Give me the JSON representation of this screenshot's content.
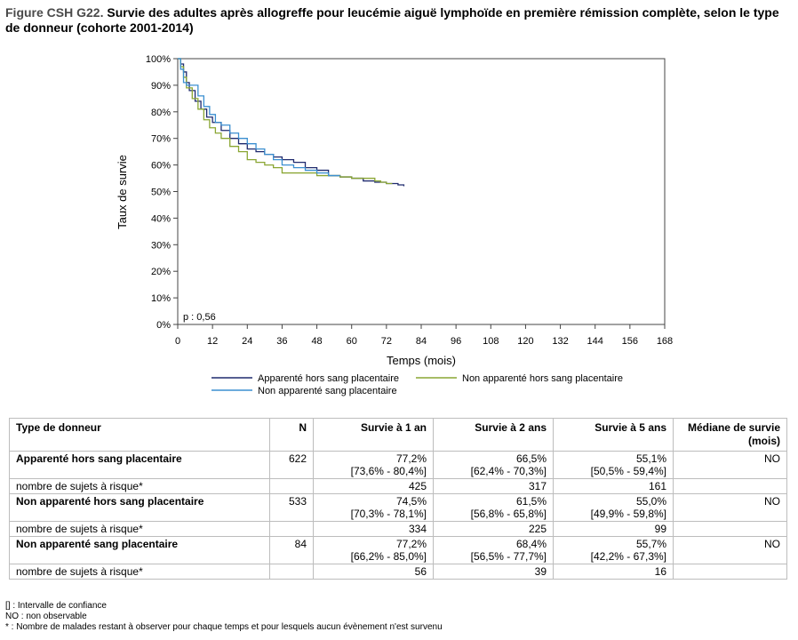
{
  "figure": {
    "number": "Figure CSH G22.",
    "title": "Survie des adultes après allogreffe pour leucémie aiguë lymphoïde en première rémission complète, selon le type de donneur  (cohorte 2001-2014)"
  },
  "colors": {
    "apparente": "#1f2a6e",
    "non_apparente_hsp": "#8aa633",
    "non_apparente_sp": "#3b8fd0"
  },
  "chart_data": {
    "type": "line",
    "title": "",
    "xlabel": "Temps (mois)",
    "ylabel": "Taux de survie",
    "xlim": [
      0,
      168
    ],
    "ylim": [
      0,
      100
    ],
    "x_ticks": [
      0,
      12,
      24,
      36,
      48,
      60,
      72,
      84,
      96,
      108,
      120,
      132,
      144,
      156,
      168
    ],
    "y_ticks": [
      0,
      10,
      20,
      30,
      40,
      50,
      60,
      70,
      80,
      90,
      100
    ],
    "y_tick_labels": [
      "0%",
      "10%",
      "20%",
      "30%",
      "40%",
      "50%",
      "60%",
      "70%",
      "80%",
      "90%",
      "100%"
    ],
    "grid": false,
    "annotation": "p : 0,56",
    "legend_position": "bottom",
    "series": [
      {
        "name": "Apparenté hors sang placentaire",
        "color": "#1f2a6e",
        "x": [
          0,
          1,
          2,
          3,
          4,
          6,
          8,
          10,
          12,
          15,
          18,
          21,
          24,
          27,
          30,
          33,
          36,
          40,
          44,
          48,
          52,
          56,
          60,
          64,
          68,
          72,
          76,
          78
        ],
        "y": [
          100,
          98,
          95,
          91,
          88,
          84,
          81,
          78,
          76,
          73,
          70,
          68,
          66,
          65,
          64,
          63,
          62,
          61,
          59,
          58,
          56,
          55.5,
          55,
          54,
          53.5,
          53,
          52.5,
          52
        ]
      },
      {
        "name": "Non apparenté hors sang placentaire",
        "color": "#8aa633",
        "x": [
          0,
          1,
          2,
          3,
          5,
          7,
          9,
          11,
          13,
          15,
          18,
          21,
          24,
          27,
          30,
          33,
          36,
          40,
          44,
          48,
          52,
          56,
          60,
          64,
          68,
          70,
          72,
          74
        ],
        "y": [
          100,
          97,
          93,
          89,
          85,
          81,
          77,
          74,
          72,
          70,
          67,
          65,
          62,
          61,
          60,
          59,
          57,
          57,
          57,
          56,
          56,
          55.5,
          55,
          55,
          54,
          53.5,
          53,
          53
        ]
      },
      {
        "name": "Non apparenté sang placentaire",
        "color": "#3b8fd0",
        "x": [
          0,
          1,
          2,
          3,
          5,
          7,
          9,
          11,
          13,
          15,
          18,
          21,
          24,
          27,
          30,
          33,
          36,
          40,
          44,
          48,
          52,
          56
        ],
        "y": [
          100,
          96,
          91,
          90,
          90,
          86,
          82,
          79,
          76,
          75,
          72,
          70,
          68,
          66,
          64,
          62,
          60,
          59,
          58,
          57,
          56,
          56
        ]
      }
    ]
  },
  "table": {
    "headers": [
      "Type de donneur",
      "N",
      "Survie à 1 an",
      "Survie à 2 ans",
      "Survie à 5 ans",
      "Médiane de survie (mois)"
    ],
    "groups": [
      {
        "name": "Apparenté hors sang placentaire",
        "n": "622",
        "s1": "77,2%",
        "s1_ci": "[73,6% - 80,4%]",
        "s2": "66,5%",
        "s2_ci": "[62,4% - 70,3%]",
        "s5": "55,1%",
        "s5_ci": "[50,5% - 59,4%]",
        "median": "NO",
        "risk_label": "nombre de sujets à risque*",
        "r1": "425",
        "r2": "317",
        "r5": "161"
      },
      {
        "name": "Non apparenté hors sang placentaire",
        "n": "533",
        "s1": "74,5%",
        "s1_ci": "[70,3% - 78,1%]",
        "s2": "61,5%",
        "s2_ci": "[56,8% - 65,8%]",
        "s5": "55,0%",
        "s5_ci": "[49,9% - 59,8%]",
        "median": "NO",
        "risk_label": "nombre de sujets à risque*",
        "r1": "334",
        "r2": "225",
        "r5": "99"
      },
      {
        "name": "Non apparenté sang placentaire",
        "n": "84",
        "s1": "77,2%",
        "s1_ci": "[66,2% - 85,0%]",
        "s2": "68,4%",
        "s2_ci": "[56,5% - 77,7%]",
        "s5": "55,7%",
        "s5_ci": "[42,2% - 67,3%]",
        "median": "NO",
        "risk_label": "nombre de sujets à risque*",
        "r1": "56",
        "r2": "39",
        "r5": "16"
      }
    ]
  },
  "notes": [
    "[] : Intervalle de confiance",
    "NO : non observable",
    "* : Nombre de malades restant à observer pour chaque temps et pour lesquels aucun évènement n'est survenu"
  ]
}
